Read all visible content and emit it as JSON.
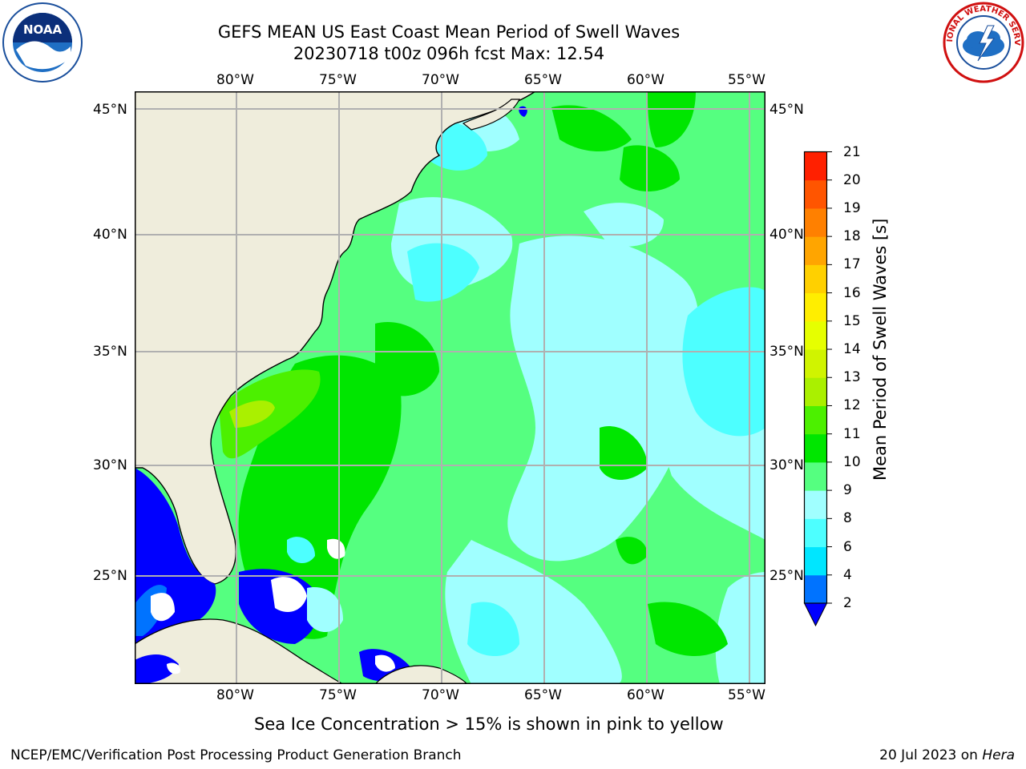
{
  "title": {
    "line1": "GEFS MEAN US East Coast Mean Period of Swell Waves",
    "line2": "20230718 t00z 096h fcst   Max: 12.54"
  },
  "logos": {
    "left": {
      "text": "NOAA",
      "icon": "noaa-logo-icon"
    },
    "right": {
      "text": "NATIONAL WEATHER SERVICE",
      "icon": "nws-logo-icon"
    }
  },
  "map": {
    "lon_labels": [
      "80°W",
      "75°W",
      "70°W",
      "65°W",
      "60°W",
      "55°W"
    ],
    "lat_labels": [
      "45°N",
      "40°N",
      "35°N",
      "30°N",
      "25°N"
    ],
    "land_color": "#efeddc",
    "ocean_base_color": "#55ff80",
    "grid_color": "#b0b0b0"
  },
  "colorbar": {
    "label": "Mean Period of Swell Waves [s]",
    "levels": [
      "2",
      "4",
      "6",
      "8",
      "9",
      "10",
      "11",
      "12",
      "13",
      "14",
      "15",
      "16",
      "17",
      "18",
      "19",
      "20",
      "21"
    ],
    "colors": [
      "#0073ff",
      "#00e6ff",
      "#4dffff",
      "#a0ffff",
      "#55ff80",
      "#00e600",
      "#4cf000",
      "#aaf000",
      "#d0f400",
      "#e6ff00",
      "#ffee00",
      "#ffd000",
      "#ffa500",
      "#ff8000",
      "#ff5500",
      "#ff2000"
    ],
    "under_color": "#0000ff"
  },
  "subtitle": "Sea Ice Concentration > 15% is shown in pink to yellow",
  "footer": {
    "left": "NCEP/EMC/Verification Post Processing Product Generation Branch",
    "right_date": "20 Jul 2023 on ",
    "right_machine": "Hera"
  }
}
